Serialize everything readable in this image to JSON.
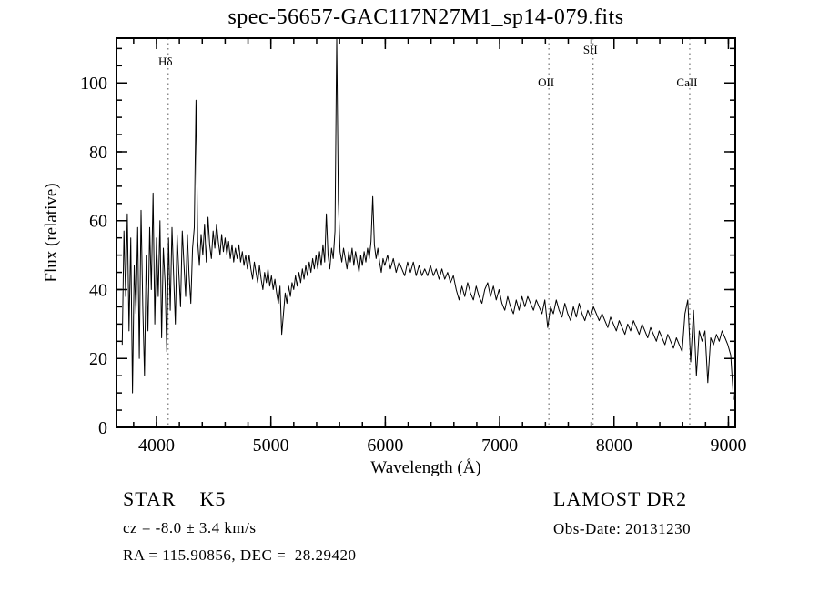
{
  "chart_data": {
    "type": "line",
    "title": "spec-56657-GAC117N27M1_sp14-079.fits",
    "xlabel": "Wavelength (Å)",
    "ylabel": "Flux (relative)",
    "xlim": [
      3650,
      9060
    ],
    "ylim": [
      0,
      113
    ],
    "xticks": [
      4000,
      5000,
      6000,
      7000,
      8000,
      9000
    ],
    "x_minor_step": 200,
    "yticks": [
      0,
      20,
      40,
      60,
      80,
      100
    ],
    "y_minor_step": 5,
    "grid": false,
    "legend": "none",
    "annotations": [
      {
        "label": "Hδ",
        "wavelength": 4102,
        "label_offset": 30
      },
      {
        "label": "OII",
        "wavelength": 7430,
        "label_offset": 53
      },
      {
        "label": "SII",
        "wavelength": 7817,
        "label_offset": 17
      },
      {
        "label": "CaII",
        "wavelength": 8662,
        "label_offset": 53
      }
    ],
    "series": [
      {
        "name": "spectrum",
        "segments": [
          {
            "x0": 3700,
            "dx": 15,
            "y": [
              24,
              57,
              38,
              62,
              28,
              55,
              10,
              47,
              33,
              58,
              20,
              63,
              35,
              15,
              50,
              28,
              58,
              40,
              68,
              30,
              55,
              38,
              60,
              26,
              52,
              42,
              22,
              55,
              34,
              58,
              44,
              30,
              56,
              45,
              35,
              57,
              47,
              38,
              56,
              44,
              36,
              52,
              58,
              95,
              54,
              47,
              56,
              50,
              59,
              48,
              61,
              53,
              49,
              57,
              52,
              59,
              54,
              50,
              56,
              51,
              55,
              50,
              54,
              49,
              53,
              48,
              52,
              49,
              53,
              48,
              51,
              47,
              50,
              46,
              50,
              46,
              43,
              48,
              45,
              42,
              47,
              43,
              40,
              45,
              42,
              46,
              41,
              44,
              40,
              43,
              39,
              36,
              41,
              27,
              33,
              39,
              36,
              41,
              38,
              42,
              40,
              44,
              41,
              45,
              42,
              46,
              43,
              47,
              44,
              48,
              45,
              49,
              46,
              50,
              46,
              51,
              47,
              53,
              48,
              62,
              50,
              46,
              52,
              49,
              57,
              115,
              66,
              51,
              48,
              52,
              49,
              46,
              51,
              48,
              52,
              47,
              51,
              48,
              45,
              50,
              47,
              51,
              48,
              52,
              49,
              54,
              67,
              53,
              49,
              52,
              48,
              45,
              49,
              47
            ]
          },
          {
            "x0": 6020,
            "dx": 25,
            "y": [
              50,
              46,
              49,
              45,
              48,
              46,
              44,
              48,
              45,
              48,
              44,
              47,
              44,
              46,
              44,
              47,
              44,
              46,
              43,
              46,
              43,
              45,
              42,
              44,
              40,
              37,
              41,
              38,
              42,
              39,
              37,
              41,
              38,
              36,
              40,
              42,
              38,
              41,
              37,
              40,
              36,
              34,
              38,
              35,
              33,
              37,
              34,
              38,
              35,
              38,
              36,
              34,
              37,
              35,
              33,
              37,
              29,
              35,
              33,
              37,
              34,
              32,
              36,
              33,
              31,
              35,
              32,
              36,
              33,
              31,
              34,
              32,
              35,
              33,
              31,
              33,
              31,
              29,
              32,
              30,
              28,
              31,
              29,
              27,
              30,
              28,
              31,
              29,
              27,
              30,
              28,
              26,
              29,
              27,
              25,
              28,
              26,
              24,
              27,
              25,
              23,
              26,
              24,
              22,
              33,
              37,
              19,
              34,
              15,
              28,
              25,
              28,
              13,
              26,
              24,
              27,
              25,
              28,
              26,
              24,
              21,
              8
            ]
          }
        ]
      }
    ]
  },
  "footer": {
    "object_type": "STAR    K5",
    "survey": "LAMOST DR2",
    "cz": "cz = -8.0 ± 3.4 km/s",
    "obs_date": "Obs-Date: 20131230",
    "coords": "RA = 115.90856, DEC =  28.29420"
  },
  "colors": {
    "line": "#000000",
    "annotation_line": "#555555",
    "background": "#ffffff"
  }
}
